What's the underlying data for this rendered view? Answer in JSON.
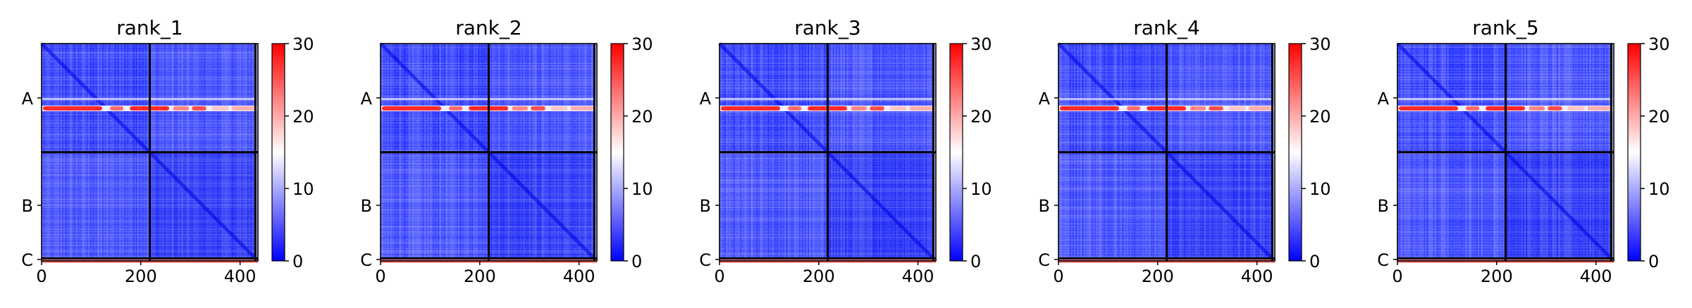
{
  "chart_data": [
    {
      "type": "heatmap",
      "title": "rank_1",
      "xlim": [
        0,
        436
      ],
      "xticks": [
        0,
        200,
        400
      ],
      "chains": [
        {
          "label": "A",
          "start": 0,
          "end": 218
        },
        {
          "label": "B",
          "start": 218,
          "end": 431
        },
        {
          "label": "C",
          "start": 431,
          "end": 436
        }
      ],
      "colorbar": {
        "min": 0,
        "max": 30,
        "ticks": [
          0,
          10,
          20,
          30
        ],
        "colormap": "bwr"
      }
    },
    {
      "type": "heatmap",
      "title": "rank_2",
      "xlim": [
        0,
        436
      ],
      "xticks": [
        0,
        200,
        400
      ],
      "chains": [
        {
          "label": "A",
          "start": 0,
          "end": 218
        },
        {
          "label": "B",
          "start": 218,
          "end": 431
        },
        {
          "label": "C",
          "start": 431,
          "end": 436
        }
      ],
      "colorbar": {
        "min": 0,
        "max": 30,
        "ticks": [
          0,
          10,
          20,
          30
        ],
        "colormap": "bwr"
      }
    },
    {
      "type": "heatmap",
      "title": "rank_3",
      "xlim": [
        0,
        436
      ],
      "xticks": [
        0,
        200,
        400
      ],
      "chains": [
        {
          "label": "A",
          "start": 0,
          "end": 218
        },
        {
          "label": "B",
          "start": 218,
          "end": 431
        },
        {
          "label": "C",
          "start": 431,
          "end": 436
        }
      ],
      "colorbar": {
        "min": 0,
        "max": 30,
        "ticks": [
          0,
          10,
          20,
          30
        ],
        "colormap": "bwr"
      }
    },
    {
      "type": "heatmap",
      "title": "rank_4",
      "xlim": [
        0,
        436
      ],
      "xticks": [
        0,
        200,
        400
      ],
      "chains": [
        {
          "label": "A",
          "start": 0,
          "end": 218
        },
        {
          "label": "B",
          "start": 218,
          "end": 431
        },
        {
          "label": "C",
          "start": 431,
          "end": 436
        }
      ],
      "colorbar": {
        "min": 0,
        "max": 30,
        "ticks": [
          0,
          10,
          20,
          30
        ],
        "colormap": "bwr"
      }
    },
    {
      "type": "heatmap",
      "title": "rank_5",
      "xlim": [
        0,
        436
      ],
      "xticks": [
        0,
        200,
        400
      ],
      "chains": [
        {
          "label": "A",
          "start": 0,
          "end": 218
        },
        {
          "label": "B",
          "start": 218,
          "end": 431
        },
        {
          "label": "C",
          "start": 431,
          "end": 436
        }
      ],
      "colorbar": {
        "min": 0,
        "max": 30,
        "ticks": [
          0,
          10,
          20,
          30
        ],
        "colormap": "bwr"
      }
    }
  ],
  "colors": {
    "low": "#0000ff",
    "mid": "#ffffff",
    "high": "#ff0000",
    "boundary": "#000000"
  }
}
